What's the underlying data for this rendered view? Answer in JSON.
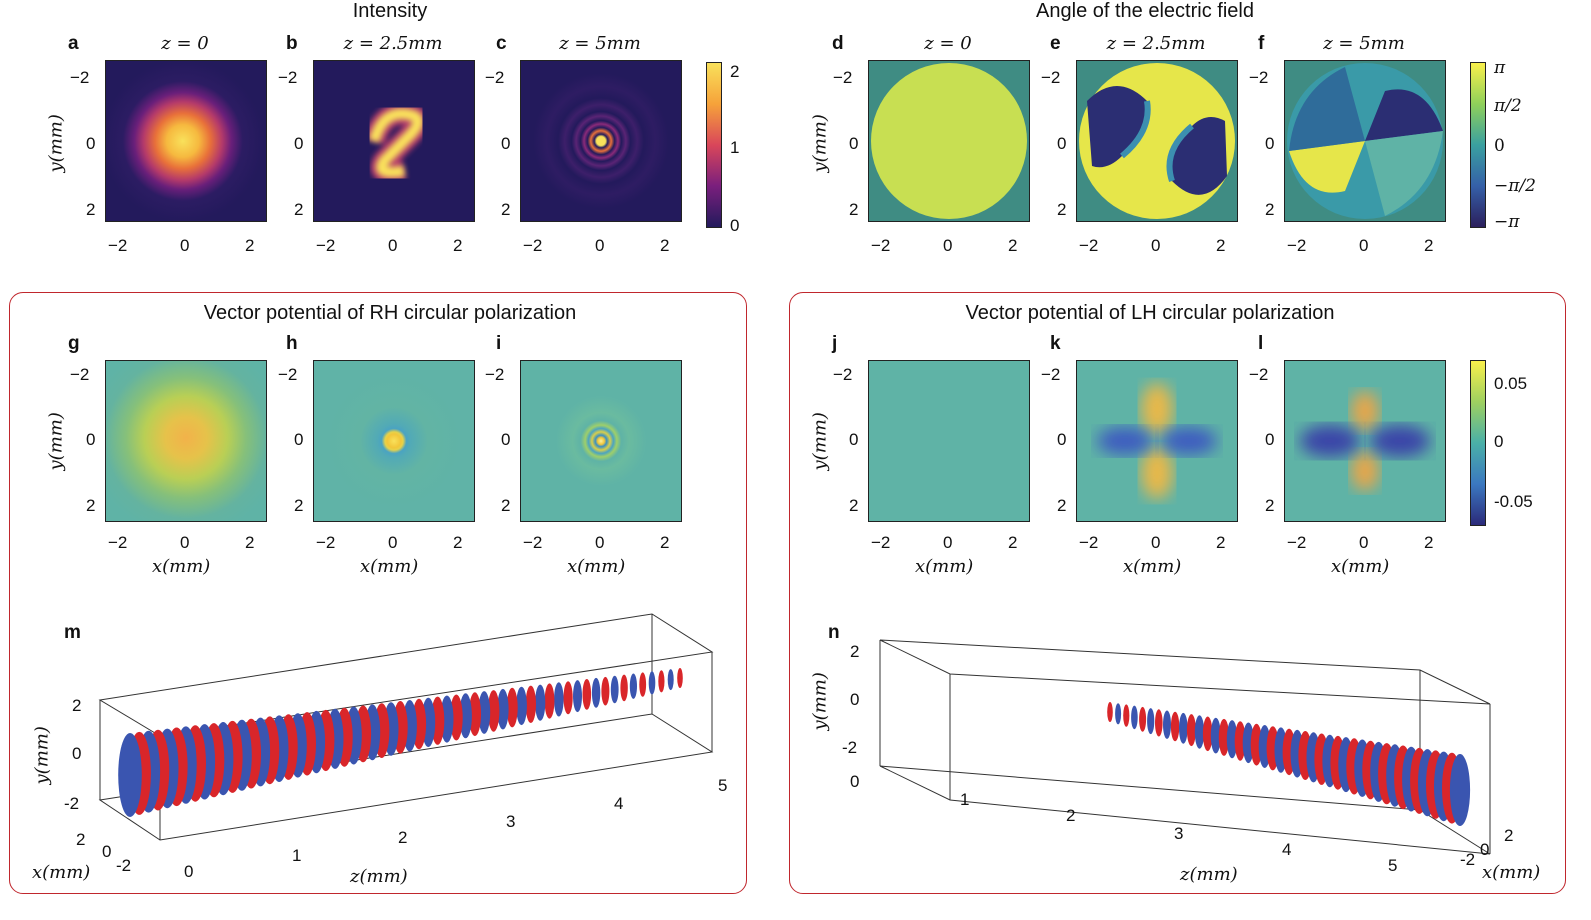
{
  "figure": {
    "top_left_title": "Intensity",
    "top_right_title": "Angle of the electric field",
    "box_left_title": "Vector potential of RH circular polarization",
    "box_right_title": "Vector potential of LH circular polarization",
    "panel_labels": [
      "a",
      "b",
      "c",
      "d",
      "e",
      "f",
      "g",
      "h",
      "i",
      "j",
      "k",
      "l",
      "m",
      "n"
    ],
    "z_titles": [
      "z = 0",
      "z = 2.5mm",
      "z = 5mm"
    ],
    "x_axis_label": "x(mm)",
    "y_axis_label": "y(mm)",
    "z_axis_label": "z(mm)",
    "x_ticks": [
      "−2",
      "0",
      "2"
    ],
    "y_ticks": [
      "−2",
      "0",
      "2"
    ],
    "intensity_colorbar_ticks": [
      "2",
      "1",
      "0"
    ],
    "angle_colorbar_ticks": [
      "π",
      "π/2",
      "0",
      "−π/2",
      "−π"
    ],
    "vector_colorbar_ticks": [
      "0.05",
      "0",
      "-0.05"
    ],
    "m_y_ticks": [
      "2",
      "0",
      "-2"
    ],
    "m_x_ticks": [
      "2",
      "0",
      "-2"
    ],
    "m_z_ticks": [
      "0",
      "1",
      "2",
      "3",
      "4",
      "5"
    ],
    "n_y_ticks": [
      "2",
      "0",
      "-2"
    ],
    "n_x_ticks": [
      "-2",
      "0",
      "2"
    ],
    "n_z_ticks": [
      "0",
      "1",
      "2",
      "3",
      "4",
      "5"
    ]
  },
  "colors": {
    "frame_red": "#c0272d",
    "helix_red": "#d9262a",
    "helix_blue": "#3a55b0",
    "inferno_dark": "#231a5c",
    "inferno_bright": "#f9e15b",
    "phase_teal": "#3f8c83",
    "phase_yellow": "#d8e44e",
    "vector_bg": "#5fb3a6"
  }
}
